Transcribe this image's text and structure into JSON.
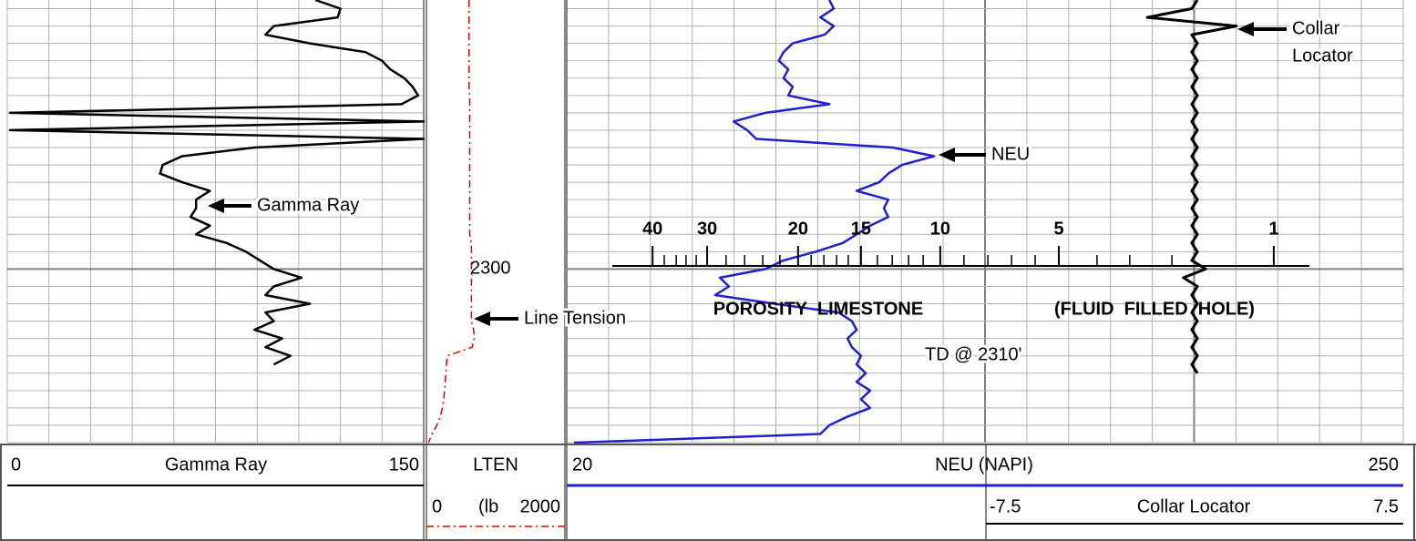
{
  "chart_data": {
    "type": "well-log",
    "ylim": [
      2269,
      2320
    ],
    "yticks": [
      2300
    ],
    "ygrid": [
      2270,
      2272,
      2274,
      2276,
      2278,
      2280,
      2282,
      2284,
      2286,
      2288,
      2290,
      2292,
      2294,
      2296,
      2298,
      2300,
      2302,
      2304,
      2306,
      2308,
      2310,
      2312,
      2314,
      2316,
      2318,
      2320
    ],
    "depth": [
      2269,
      2270,
      2271,
      2272,
      2273,
      2274,
      2275,
      2276,
      2277,
      2278,
      2279,
      2280,
      2281,
      2282,
      2283,
      2284,
      2285,
      2286,
      2287,
      2288,
      2289,
      2290,
      2291,
      2292,
      2293,
      2294,
      2295,
      2296,
      2297,
      2298,
      2299,
      2300,
      2301,
      2302,
      2303,
      2304,
      2305,
      2306,
      2307,
      2308,
      2309,
      2310,
      2311,
      2312,
      2313,
      2314,
      2315,
      2316,
      2317,
      2318,
      2319,
      2320
    ],
    "tracks": [
      {
        "name": "Gamma Ray",
        "xlim": [
          0,
          150
        ],
        "color": "#000000",
        "annotation": "Gamma Ray",
        "values": [
          111,
          120,
          119,
          96,
          93,
          109,
          129,
          135,
          138,
          143,
          146,
          148,
          142,
          1,
          150,
          1,
          150,
          89,
          63,
          56,
          55,
          63,
          73,
          68,
          68,
          66,
          73,
          68,
          79,
          86,
          91,
          96,
          106,
          96,
          93,
          109,
          93,
          96,
          89,
          99,
          93,
          102,
          96,
          null,
          null,
          null,
          null,
          null,
          null,
          null,
          null,
          null
        ]
      },
      {
        "name": "LTEN",
        "unit": "(lb",
        "xlim": [
          0,
          2000
        ],
        "color": "#e00000",
        "annotation": "Line Tension",
        "values": [
          615,
          615,
          615,
          615,
          615,
          615,
          615,
          615,
          615,
          615,
          615,
          625,
          625,
          625,
          625,
          625,
          625,
          625,
          625,
          625,
          625,
          625,
          625,
          625,
          625,
          625,
          625,
          625,
          650,
          650,
          650,
          650,
          650,
          650,
          650,
          650,
          650,
          650,
          680,
          690,
          660,
          300,
          290,
          280,
          270,
          260,
          250,
          230,
          200,
          150,
          80,
          30
        ]
      },
      {
        "name": "NEU (NAPI)",
        "xlim": [
          20,
          250
        ],
        "color": "#1f1fd0",
        "annotation": "NEU",
        "values": [
          92.2,
          93.4,
          89.7,
          93.4,
          90.9,
          82.1,
          79.6,
          78.3,
          80.9,
          79.6,
          82.1,
          80.9,
          92.2,
          74.6,
          65.9,
          69.6,
          72.1,
          109.7,
          121,
          112.2,
          108.4,
          105.9,
          99.7,
          108.4,
          107.2,
          108.4,
          103.4,
          99.7,
          95.9,
          88.4,
          79.6,
          74.6,
          62.1,
          64.6,
          60.8,
          77.1,
          94.7,
          98.4,
          99.7,
          97.2,
          98.4,
          100.9,
          99.7,
          102.2,
          99.7,
          103.4,
          100.9,
          103.4,
          97.2,
          92.2,
          89.7,
          22
        ]
      },
      {
        "name": "Collar Locator",
        "xlim": [
          -7.5,
          7.5
        ],
        "color": "#000000",
        "annotation": [
          "Collar",
          "Locator"
        ],
        "values": [
          0.1,
          -0.1,
          -1.7,
          1.5,
          -0.1,
          0.1,
          -0.1,
          0.1,
          -0.1,
          0.1,
          -0.1,
          0.1,
          -0.1,
          0.1,
          -0.1,
          0.1,
          -0.1,
          0.1,
          -0.1,
          0.1,
          -0.1,
          0.1,
          -0.1,
          0.1,
          -0.1,
          0.1,
          -0.1,
          0.1,
          -0.1,
          0.1,
          -0.1,
          0.4,
          -0.4,
          0.1,
          -0.1,
          0.1,
          -0.1,
          0.1,
          -0.1,
          0.1,
          -0.1,
          0.1,
          -0.1,
          0.1,
          null,
          null,
          null,
          null,
          null,
          null,
          null,
          null
        ]
      }
    ],
    "porosity": {
      "ticks": [
        {
          "value": 43.6,
          "label": "40"
        },
        {
          "value": 58.6,
          "label": "30"
        },
        {
          "value": 83.6,
          "label": "20"
        },
        {
          "value": 100.9,
          "label": "15"
        },
        {
          "value": 122.7,
          "label": "10"
        },
        {
          "value": 155.3,
          "label": "5"
        },
        {
          "value": 214.4,
          "label": "1"
        }
      ],
      "minor_ticks": [
        46.8,
        50.1,
        52.8,
        55.6,
        63.8,
        68.9,
        73.9,
        78.6,
        87.2,
        90.7,
        94.2,
        97.4,
        105.4,
        109.5,
        114,
        118,
        129.2,
        135.8,
        142.3,
        148.8,
        165.8,
        174.8,
        186.4
      ],
      "labels": [
        "POROSITY  LIMESTONE",
        "(FLUID  FILLED  HOLE)"
      ]
    },
    "td_note": "TD @ 2310'"
  }
}
